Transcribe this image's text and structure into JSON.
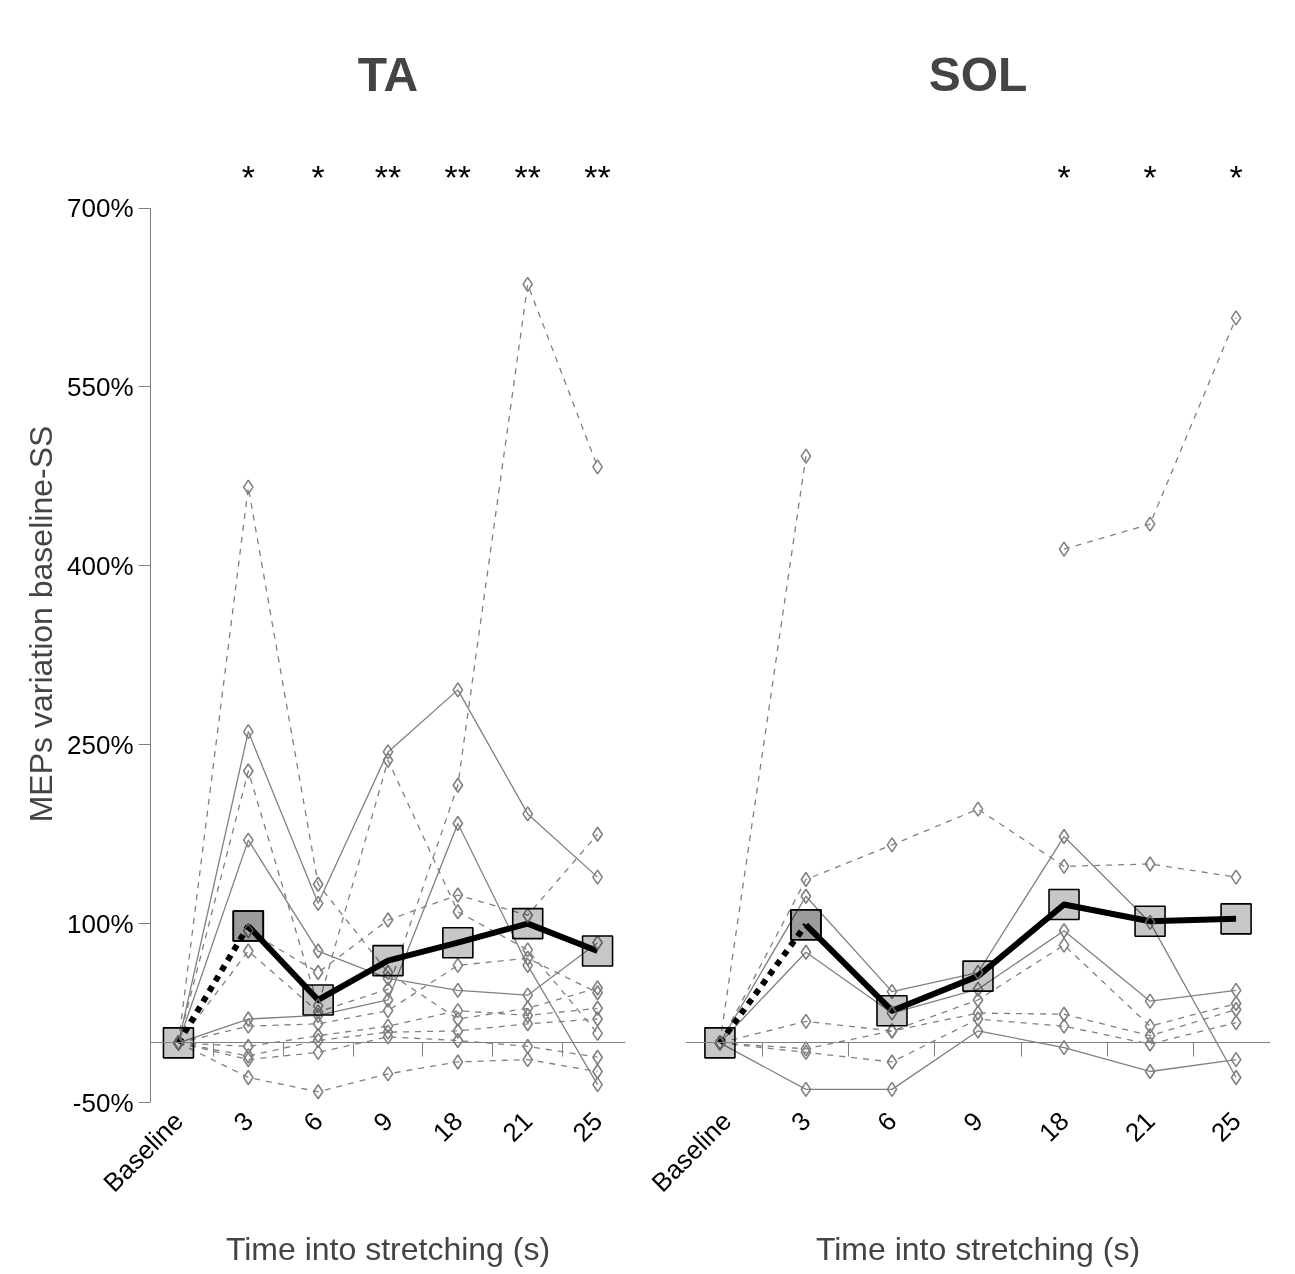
{
  "chart_data": [
    {
      "type": "line",
      "title": "TA",
      "xlabel": "Time into stretching (s)",
      "ylabel": "MEPs variation baseline-SS",
      "categories": [
        "Baseline",
        "3",
        "6",
        "9",
        "18",
        "21",
        "25"
      ],
      "ylim": [
        -50,
        700
      ],
      "yticks": [
        {
          "value": -50,
          "label": "-50%"
        },
        {
          "value": 100,
          "label": "100%"
        },
        {
          "value": 250,
          "label": "250%"
        },
        {
          "value": 400,
          "label": "400%"
        },
        {
          "value": 550,
          "label": "550%"
        },
        {
          "value": 700,
          "label": "700%"
        }
      ],
      "grid": false,
      "series": [
        {
          "color": "#808080",
          "marker": "diamond",
          "line_style": "dashed",
          "values": [
            0,
            466,
            133,
            59,
            20,
            29,
            46
          ]
        },
        {
          "color": "#808080",
          "marker": "diamond",
          "line_style": "solid",
          "values": [
            0,
            261,
            117,
            244,
            296,
            192,
            139
          ]
        },
        {
          "color": "#808080",
          "marker": "diamond",
          "line_style": "dashed",
          "values": [
            0,
            228,
            31,
            237,
            110,
            78,
            8
          ]
        },
        {
          "color": "#808080",
          "marker": "diamond",
          "line_style": "solid",
          "values": [
            0,
            170,
            77,
            54,
            44,
            40,
            84
          ]
        },
        {
          "color": "#808080",
          "marker": "diamond",
          "line_style": "dashed",
          "values": [
            0,
            94,
            59,
            103,
            124,
            107,
            175
          ]
        },
        {
          "color": "#808080",
          "marker": "diamond",
          "line_style": "dashed",
          "values": [
            0,
            77,
            26,
            45,
            216,
            636,
            483
          ]
        },
        {
          "color": "#808080",
          "marker": "diamond",
          "line_style": "solid",
          "values": [
            0,
            20,
            23,
            36,
            184,
            65,
            -35
          ]
        },
        {
          "color": "#808080",
          "marker": "diamond",
          "line_style": "dashed",
          "values": [
            0,
            14,
            16,
            27,
            65,
            71,
            42
          ]
        },
        {
          "color": "#808080",
          "marker": "diamond",
          "line_style": "dashed",
          "values": [
            0,
            -3,
            6,
            14,
            27,
            23,
            29
          ]
        },
        {
          "color": "#808080",
          "marker": "diamond",
          "line_style": "dashed",
          "values": [
            0,
            -11,
            2,
            9,
            10,
            16,
            20
          ]
        },
        {
          "color": "#808080",
          "marker": "diamond",
          "line_style": "dashed",
          "values": [
            0,
            -14,
            -8,
            5,
            2,
            -3,
            -12
          ]
        },
        {
          "color": "#808080",
          "marker": "diamond",
          "line_style": "dashed",
          "values": [
            0,
            -29,
            -41,
            -26,
            -16,
            -14,
            -24
          ]
        },
        {
          "color": "#000000",
          "marker": "square",
          "line_style": "dashed",
          "values": [
            0,
            98,
            null,
            null,
            null,
            null,
            null
          ]
        },
        {
          "color": "#000000",
          "marker": "square",
          "line_style": "solid",
          "values": [
            null,
            98,
            36,
            69,
            84,
            100,
            77
          ]
        }
      ],
      "annotations": [
        "*",
        "*",
        "**",
        "**",
        "**",
        "**"
      ]
    },
    {
      "type": "line",
      "title": "SOL",
      "xlabel": "Time into stretching (s)",
      "categories": [
        "Baseline",
        "3",
        "6",
        "9",
        "18",
        "21",
        "25"
      ],
      "ylim": [
        -50,
        700
      ],
      "tick_labels": "x",
      "grid": false,
      "series": [
        {
          "color": "#808080",
          "marker": "diamond",
          "line_style": "dashed",
          "values": [
            0,
            492,
            null,
            null,
            414,
            435,
            608
          ]
        },
        {
          "color": "#808080",
          "marker": "diamond",
          "line_style": "dashed",
          "values": [
            0,
            137,
            166,
            196,
            148,
            150,
            139
          ]
        },
        {
          "color": "#808080",
          "marker": "diamond",
          "line_style": "solid",
          "values": [
            0,
            123,
            43,
            59,
            173,
            101,
            -29
          ]
        },
        {
          "color": "#808080",
          "marker": "diamond",
          "line_style": "solid",
          "values": [
            0,
            76,
            25,
            45,
            94,
            35,
            44
          ]
        },
        {
          "color": "#808080",
          "marker": "diamond",
          "line_style": "dashed",
          "values": [
            0,
            18,
            10,
            36,
            82,
            14,
            33
          ]
        },
        {
          "color": "#808080",
          "marker": "diamond",
          "line_style": "dashed",
          "values": [
            0,
            -5,
            10,
            25,
            24,
            6,
            28
          ]
        },
        {
          "color": "#808080",
          "marker": "diamond",
          "line_style": "dashed",
          "values": [
            0,
            -8,
            -16,
            20,
            14,
            -1,
            17
          ]
        },
        {
          "color": "#808080",
          "marker": "diamond",
          "line_style": "solid",
          "values": [
            0,
            -39,
            -39,
            10,
            -4,
            -24,
            -14
          ]
        },
        {
          "color": "#000000",
          "marker": "square",
          "line_style": "dashed",
          "values": [
            0,
            99,
            null,
            null,
            null,
            null,
            null
          ]
        },
        {
          "color": "#000000",
          "marker": "square",
          "line_style": "solid",
          "values": [
            null,
            99,
            27,
            56,
            116,
            102,
            104
          ]
        }
      ],
      "annotations": [
        "*",
        "*",
        "*"
      ]
    }
  ]
}
